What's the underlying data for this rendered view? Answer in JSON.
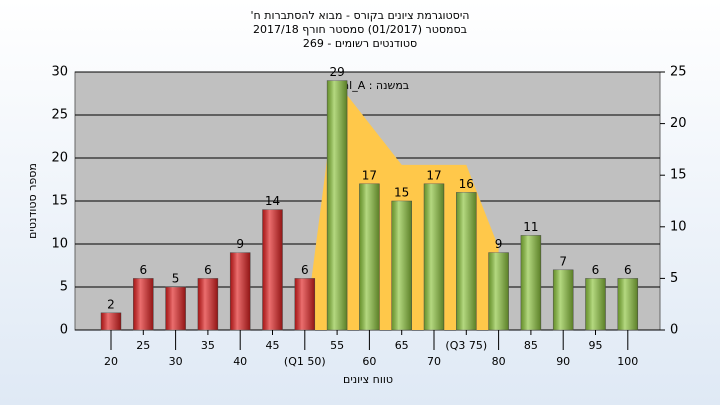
{
  "chart_data": {
    "type": "bar",
    "title": [
      "היסטוגרמת ציונים בקורס - מבוא להסתברות ח'",
      "בסמסטר (01/2017) סמסטר חורף 2017/18",
      "סטודנטים רשומים - 269"
    ],
    "annotation": "במשנה : Final_A",
    "xlabel": "טווח ציונים",
    "ylabel": "מספר סטודנטים",
    "categories": [
      "20",
      "25",
      "30",
      "35",
      "40",
      "45",
      "(Q1 50)",
      "55",
      "60",
      "65",
      "70",
      "(Q3 75)",
      "80",
      "85",
      "90",
      "95",
      "100"
    ],
    "series": [
      {
        "values": [
          2,
          6,
          5,
          6,
          9,
          14,
          6,
          29,
          17,
          15,
          17,
          16,
          9,
          11,
          7,
          6,
          6
        ],
        "colors": [
          "#e02020",
          "#e02020",
          "#e02020",
          "#e02020",
          "#e02020",
          "#e02020",
          "#e02020",
          "#8cc43c",
          "#8cc43c",
          "#8cc43c",
          "#8cc43c",
          "#8cc43c",
          "#8cc43c",
          "#8cc43c",
          "#8cc43c",
          "#8cc43c",
          "#8cc43c"
        ]
      },
      {
        "type": "area",
        "axis": "y2",
        "color": "#ffc84a",
        "values": [
          null,
          null,
          null,
          null,
          null,
          null,
          0,
          24,
          20,
          16,
          16,
          16,
          8,
          null,
          null,
          null,
          null
        ]
      }
    ],
    "ylim": [
      0,
      30
    ],
    "yticks": [
      0,
      5,
      10,
      15,
      20,
      25,
      30
    ],
    "y2lim": [
      0,
      25
    ],
    "y2ticks": [
      0,
      5,
      10,
      15,
      20,
      25
    ],
    "grid": true
  }
}
